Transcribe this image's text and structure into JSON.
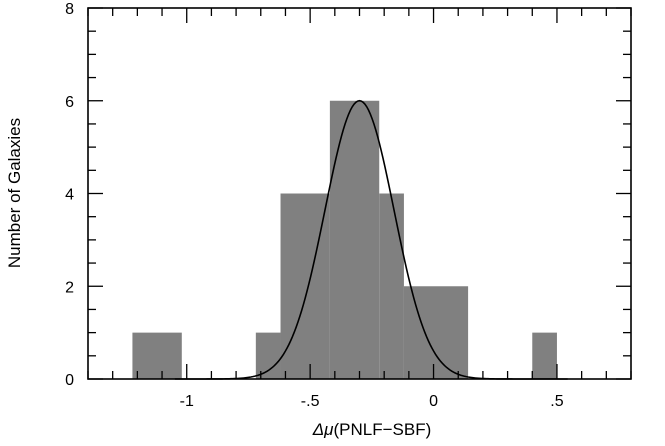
{
  "chart_data": {
    "type": "bar",
    "subtype": "histogram",
    "xlabel_prefix": "Δμ",
    "xlabel_suffix": "(PNLF−SBF)",
    "ylabel": "Number of Galaxies",
    "xlim": [
      -1.4,
      0.8
    ],
    "ylim": [
      0,
      8
    ],
    "x_ticks": [
      {
        "value": -1.0,
        "label": "-1"
      },
      {
        "value": -0.5,
        "label": "-.5"
      },
      {
        "value": 0.0,
        "label": "0"
      },
      {
        "value": 0.5,
        "label": ".5"
      }
    ],
    "y_ticks": [
      {
        "value": 0,
        "label": "0"
      },
      {
        "value": 2,
        "label": "2"
      },
      {
        "value": 4,
        "label": "4"
      },
      {
        "value": 6,
        "label": "6"
      },
      {
        "value": 8,
        "label": "8"
      }
    ],
    "bins": [
      {
        "x0": -1.22,
        "x1": -1.02,
        "count": 1
      },
      {
        "x0": -0.72,
        "x1": -0.62,
        "count": 1
      },
      {
        "x0": -0.62,
        "x1": -0.42,
        "count": 4
      },
      {
        "x0": -0.42,
        "x1": -0.22,
        "count": 6
      },
      {
        "x0": -0.22,
        "x1": -0.12,
        "count": 4
      },
      {
        "x0": -0.12,
        "x1": 0.14,
        "count": 2
      },
      {
        "x0": 0.4,
        "x1": 0.5,
        "count": 1
      }
    ],
    "gaussian": {
      "mean": -0.3,
      "sigma": 0.14,
      "amplitude": 6.0
    },
    "bar_color": "#808080",
    "curve_color": "#000000",
    "grid": false,
    "legend": "none"
  }
}
